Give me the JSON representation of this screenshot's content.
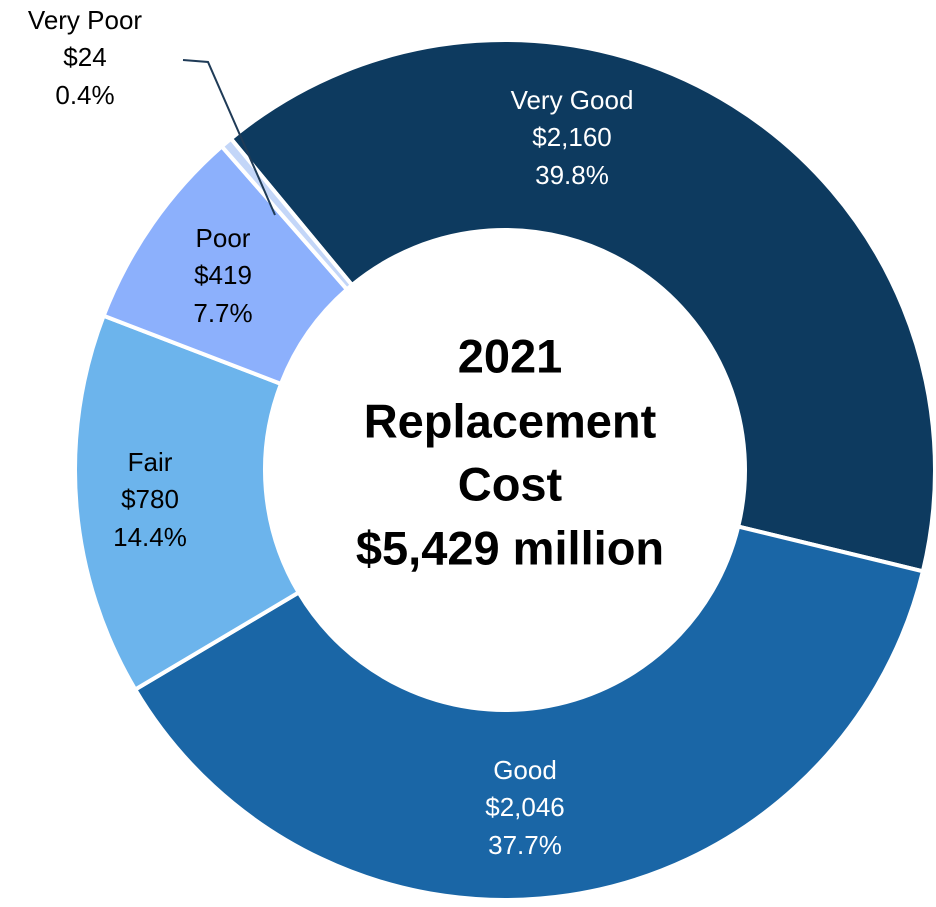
{
  "chart_data": {
    "type": "donut",
    "categories": [
      "Very Good",
      "Good",
      "Fair",
      "Poor",
      "Very Poor"
    ],
    "values": [
      2160,
      2046,
      780,
      419,
      24
    ],
    "value_labels": [
      "$2,160",
      "$2,046",
      "$780",
      "$419",
      "$24"
    ],
    "percentages": [
      39.8,
      37.7,
      14.4,
      7.7,
      0.4
    ],
    "percentage_labels": [
      "39.8%",
      "37.7%",
      "14.4%",
      "7.7%",
      "0.4%"
    ],
    "colors": [
      "#0d3a5f",
      "#1a66a6",
      "#6cb4ec",
      "#8cb0fc",
      "#c3d6f8"
    ],
    "center_text": [
      "2021",
      "Replacement",
      "Cost",
      "$5,429 million"
    ]
  }
}
